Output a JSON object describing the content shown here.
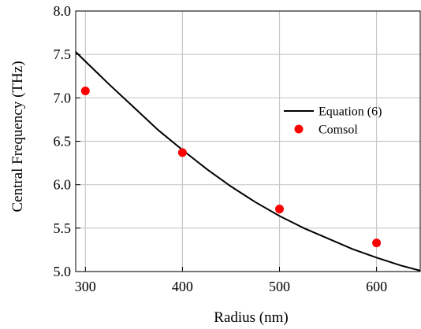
{
  "chart_data": {
    "type": "line",
    "xlabel": "Radius (nm)",
    "ylabel": "Central Frequency (THz)",
    "xlim": [
      290,
      645
    ],
    "ylim": [
      5.0,
      8.0
    ],
    "xticks": [
      "300",
      "400",
      "500",
      "600"
    ],
    "yticks": [
      "5.0",
      "5.5",
      "6.0",
      "6.5",
      "7.0",
      "7.5",
      "8.0"
    ],
    "grid": true,
    "legend_position": "right",
    "series": [
      {
        "name": "Equation (6)",
        "kind": "line",
        "color": "#000000",
        "x": [
          290,
          300,
          325,
          350,
          375,
          400,
          425,
          450,
          475,
          500,
          525,
          550,
          575,
          600,
          625,
          645
        ],
        "y": [
          7.53,
          7.42,
          7.15,
          6.89,
          6.63,
          6.4,
          6.18,
          5.98,
          5.8,
          5.64,
          5.5,
          5.38,
          5.26,
          5.16,
          5.07,
          5.01
        ]
      },
      {
        "name": "Comsol",
        "kind": "scatter",
        "color": "#ff0000",
        "x": [
          300,
          400,
          500,
          600
        ],
        "y": [
          7.08,
          6.37,
          5.72,
          5.33
        ]
      }
    ]
  }
}
